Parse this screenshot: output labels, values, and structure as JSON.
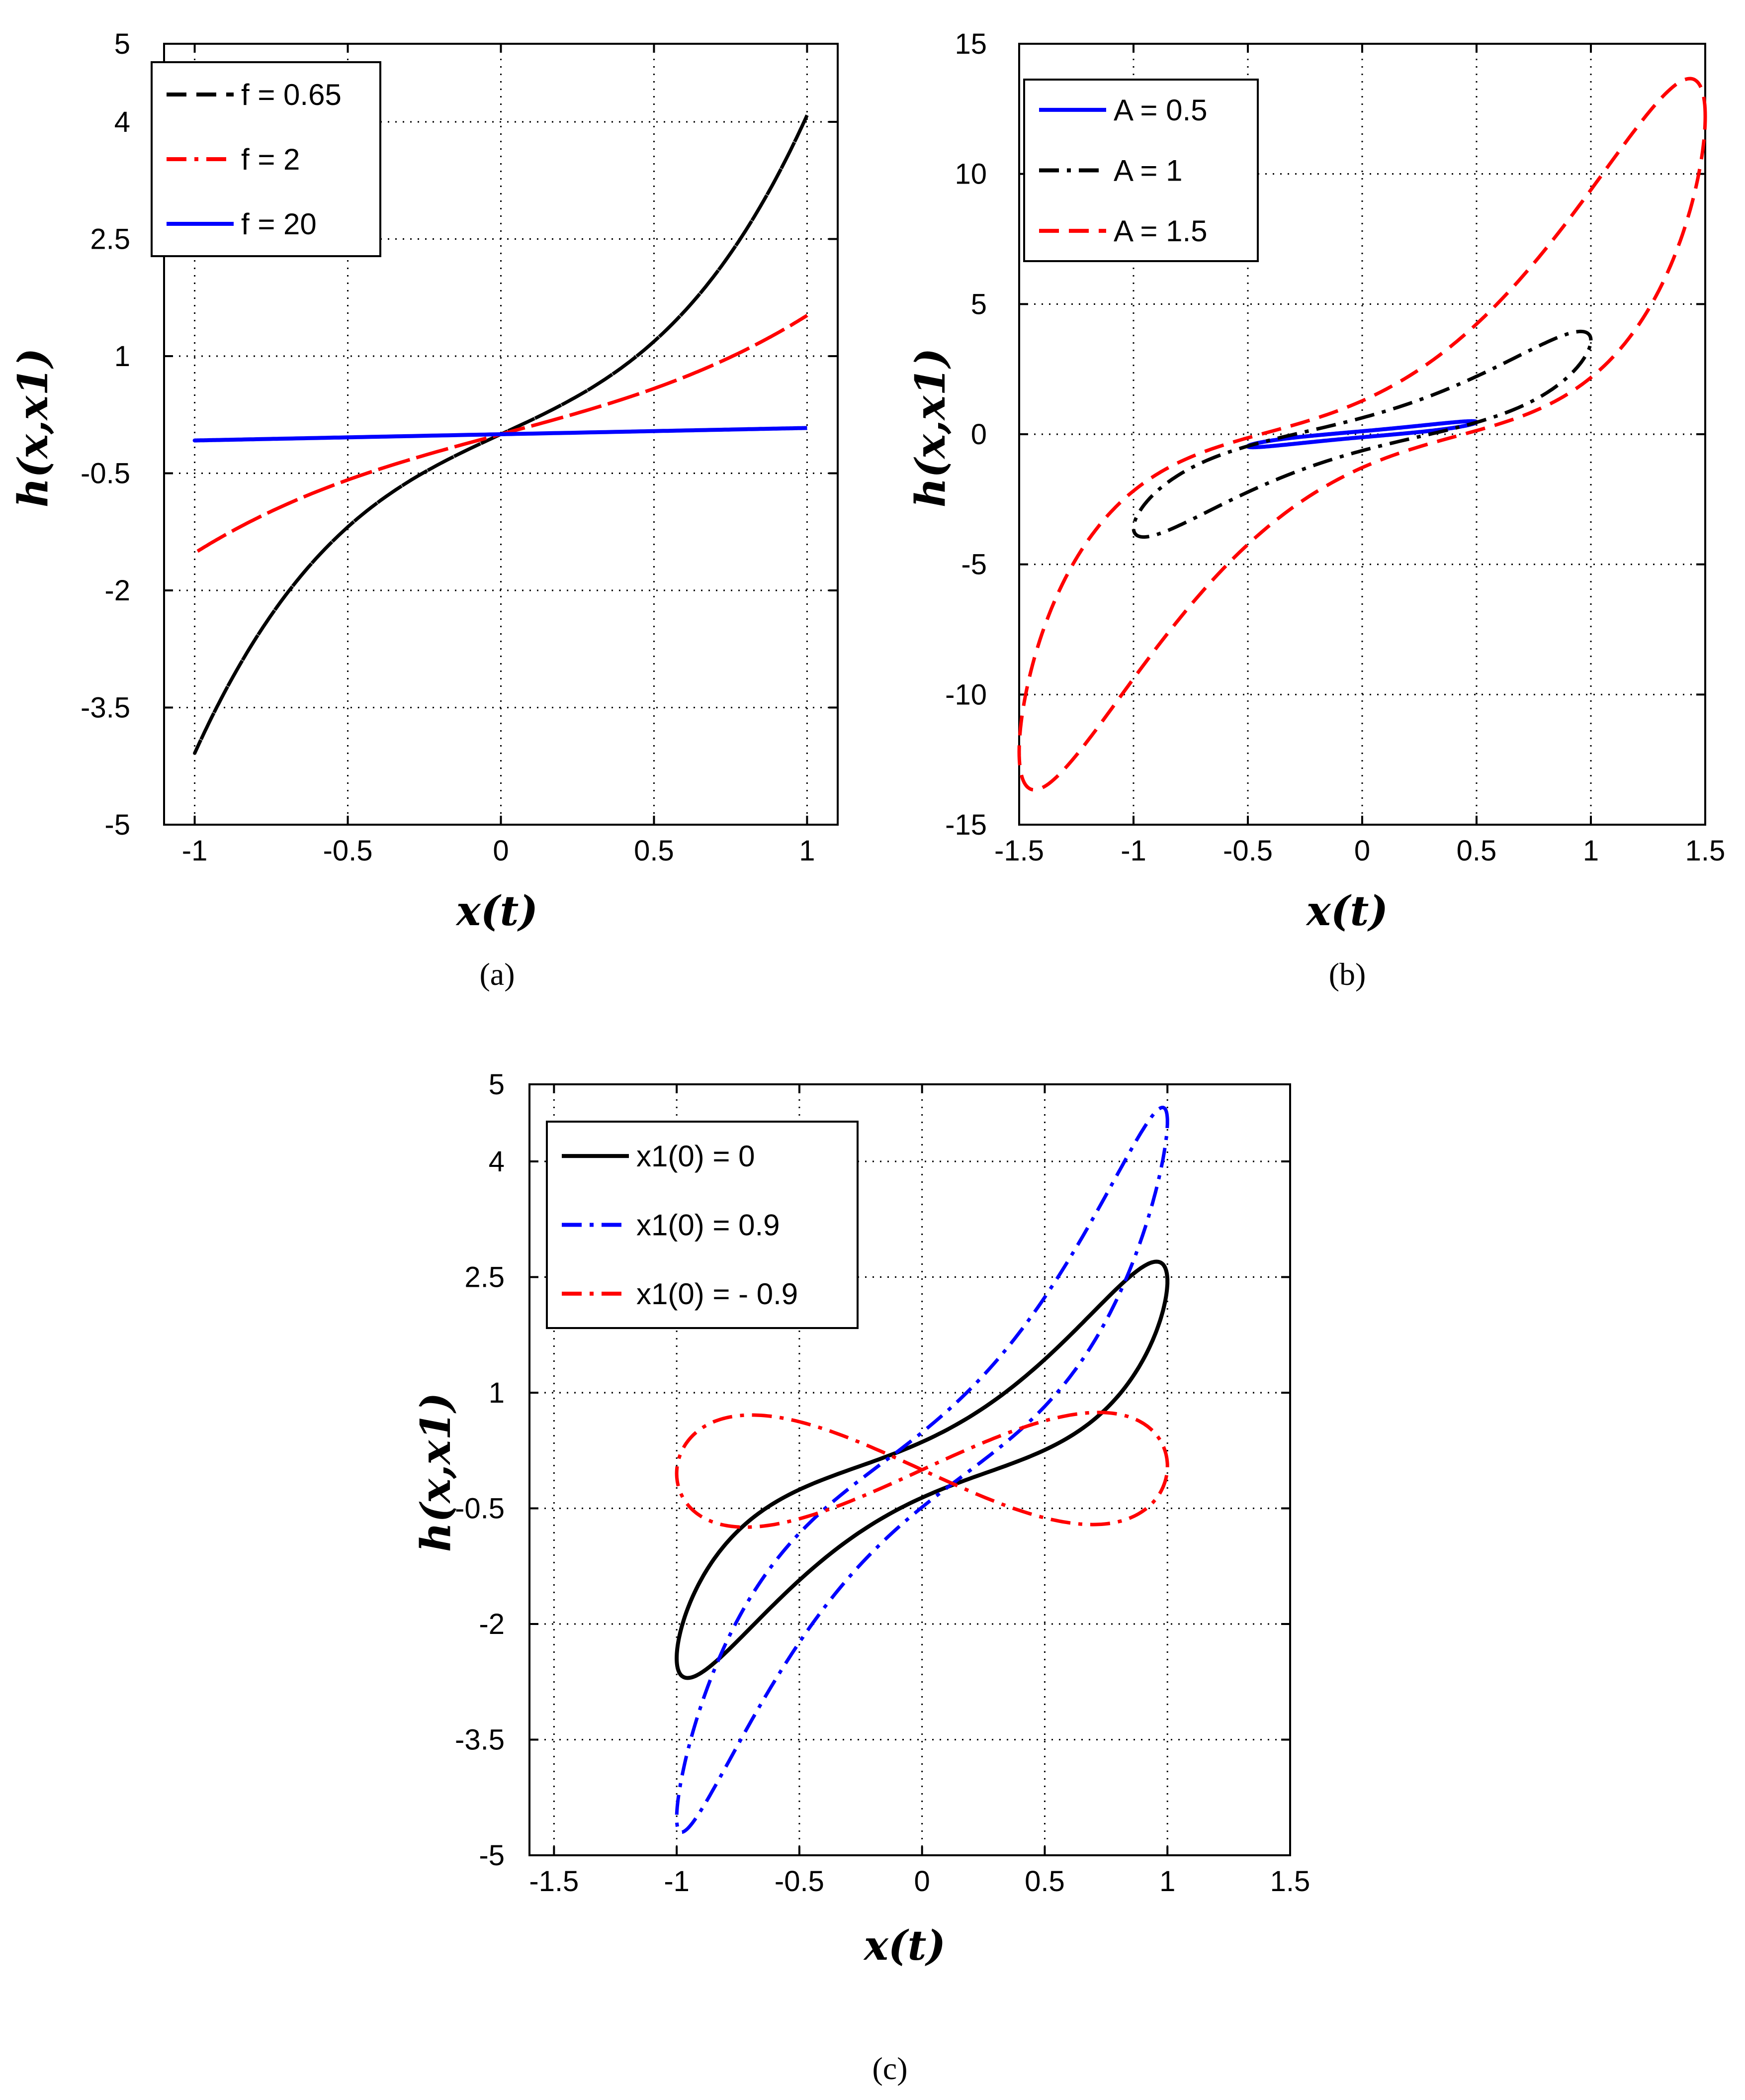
{
  "chart_data": [
    {
      "type": "line",
      "panel": "a",
      "caption": "(a)",
      "caption_letter": "a",
      "xlabel": "x(t)",
      "ylabel": "h(x,x1)",
      "xlim": [
        -1.1,
        1.1
      ],
      "ylim": [
        -5,
        5
      ],
      "xticks": [
        -1,
        -0.5,
        0,
        0.5,
        1
      ],
      "xtick_labels": [
        "-1",
        "-0.5",
        "0",
        "0.5",
        "1"
      ],
      "yticks": [
        -5,
        -3.5,
        -2,
        -0.5,
        1,
        2.5,
        4,
        5
      ],
      "ytick_labels": [
        "-5",
        "-3.5",
        "-2",
        "-0.5",
        "1",
        "2.5",
        "4",
        "5"
      ],
      "grid": true,
      "legend_position": "top-left",
      "series": [
        {
          "name": "f = 0.65",
          "color": "#000000",
          "style": "dashed",
          "amp": 1,
          "ampY": 4.3,
          "cA": 0.42,
          "cB": 0.53,
          "shift": 0
        },
        {
          "name": "f = 2",
          "color": "#ff0000",
          "style": "dashdot",
          "amp": 1,
          "ampY": 1.3,
          "cA": 0.81,
          "cB": 0.36,
          "shift": 0
        },
        {
          "name": "f = 20",
          "color": "#0000ff",
          "style": "solid",
          "amp": 1,
          "ampY": 0.08,
          "cA": 1,
          "cB": 0,
          "shift": 0
        }
      ]
    },
    {
      "type": "line",
      "panel": "b",
      "caption": "(b)",
      "caption_letter": "b",
      "xlabel": "x(t)",
      "ylabel": "h(x,x1)",
      "xlim": [
        -1.5,
        1.5
      ],
      "ylim": [
        -15,
        15
      ],
      "xticks": [
        -1.5,
        -1,
        -0.5,
        0,
        0.5,
        1,
        1.5
      ],
      "xtick_labels": [
        "-1.5",
        "-1",
        "-0.5",
        "0",
        "0.5",
        "1",
        "1.5"
      ],
      "yticks": [
        -15,
        -10,
        -5,
        0,
        5,
        10,
        15
      ],
      "ytick_labels": [
        "-15",
        "-10",
        "-5",
        "0",
        "5",
        "10",
        "15"
      ],
      "grid": true,
      "legend_position": "top-left",
      "series": [
        {
          "name": "A = 0.5",
          "color": "#0000ff",
          "style": "solid",
          "amp": 0.5,
          "ampY": 0.4,
          "cA": 0.95,
          "cB": 0.3,
          "shift": 0.3
        },
        {
          "name": "A = 1",
          "color": "#000000",
          "style": "dashdot",
          "amp": 1,
          "ampY": 2.8,
          "cA": 0.7,
          "cB": 0.71,
          "shift": 0.3
        },
        {
          "name": "A = 1.5",
          "color": "#ff0000",
          "style": "dashed",
          "amp": 1.5,
          "ampY": 13.8,
          "cA": 0.25,
          "cB": 0.74,
          "shift": 0.3
        }
      ]
    },
    {
      "type": "line",
      "panel": "c",
      "caption": "(c)",
      "caption_letter": "c",
      "xlabel": "x(t)",
      "ylabel": "h(x,x1)",
      "xlim": [
        -1.6,
        1.5
      ],
      "ylim": [
        -5,
        5
      ],
      "xticks": [
        -1.5,
        -1,
        -0.5,
        0,
        0.5,
        1,
        1.5
      ],
      "xtick_labels": [
        "-1.5",
        "-1",
        "-0.5",
        "0",
        "0.5",
        "1",
        "1.5"
      ],
      "yticks": [
        -5,
        -3.5,
        -2,
        -0.5,
        1,
        2.5,
        4,
        5
      ],
      "ytick_labels": [
        "-5",
        "-3.5",
        "-2",
        "-0.5",
        "1",
        "2.5",
        "4",
        "5"
      ],
      "grid": true,
      "legend_position": "top-left",
      "series": [
        {
          "name": "x1(0) = 0",
          "color": "#000000",
          "style": "solid",
          "amp": 1,
          "ampY": 2.7,
          "cA": 0.4,
          "cB": 0.6,
          "shift": 0.3
        },
        {
          "name": "x1(0) = 0.9",
          "color": "#0000ff",
          "style": "dashdot",
          "amp": 1,
          "ampY": 4.7,
          "cA": 0.5,
          "cB": 0.5,
          "shift": 0.2
        },
        {
          "name": "x1(0) = - 0.9",
          "color": "#ff0000",
          "style": "dashdot",
          "amp": 1,
          "ampY": 0.95,
          "cA": 0,
          "cB": 1,
          "shift": 0,
          "shape": "bowtie"
        }
      ]
    }
  ]
}
